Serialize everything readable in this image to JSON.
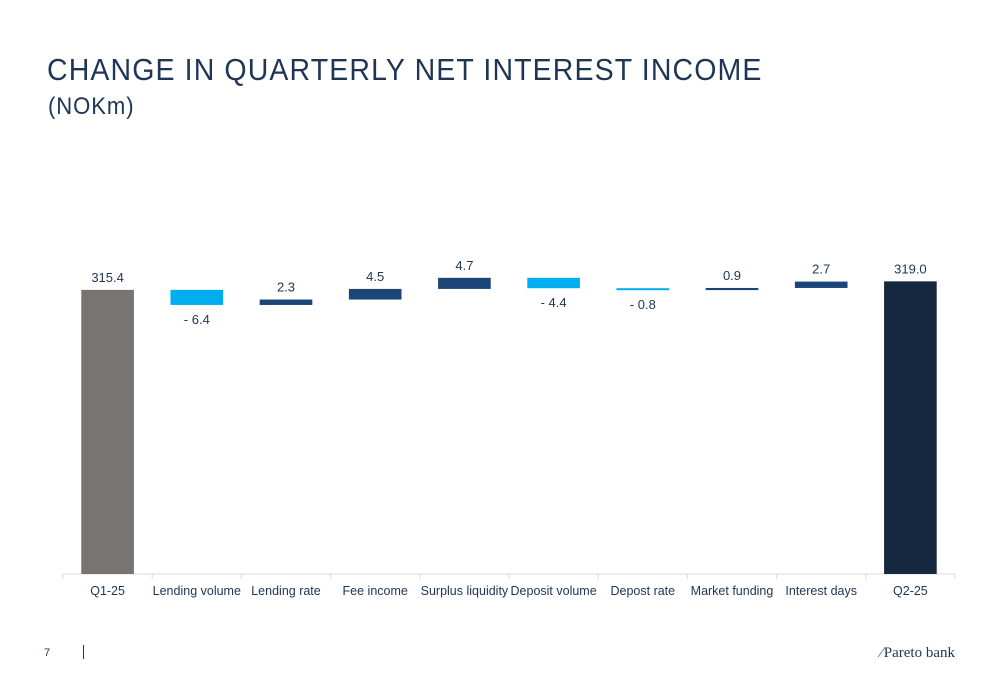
{
  "title": "CHANGE IN QUARTERLY NET INTEREST INCOME",
  "subtitle": "(NOKm)",
  "page_number": "7",
  "logo": {
    "mark": "⁄",
    "text": "Pareto bank"
  },
  "colors": {
    "start_total": "#767574",
    "end_total": "#16283f",
    "increase": "#1c4677",
    "decrease": "#00aeef",
    "text": "#1e3555",
    "axis": "#d9d9d9"
  },
  "chart_data": {
    "type": "waterfall",
    "categories": [
      "Q1-25",
      "Lending volume",
      "Lending rate",
      "Fee income",
      "Surplus liquidity",
      "Deposit volume",
      "Depost rate",
      "Market funding",
      "Interest days",
      "Q2-25"
    ],
    "values": [
      315.4,
      -6.4,
      2.3,
      4.5,
      4.7,
      -4.4,
      -0.8,
      0.9,
      2.7,
      319.0
    ],
    "labels": [
      "315.4",
      "- 6.4",
      "2.3",
      "4.5",
      "4.7",
      "- 4.4",
      "- 0.8",
      "0.9",
      "2.7",
      "319.0"
    ],
    "kinds": [
      "total",
      "delta",
      "delta",
      "delta",
      "delta",
      "delta",
      "delta",
      "delta",
      "delta",
      "total"
    ],
    "ylim": [
      195,
      325
    ],
    "grid": false,
    "legend": "none"
  }
}
